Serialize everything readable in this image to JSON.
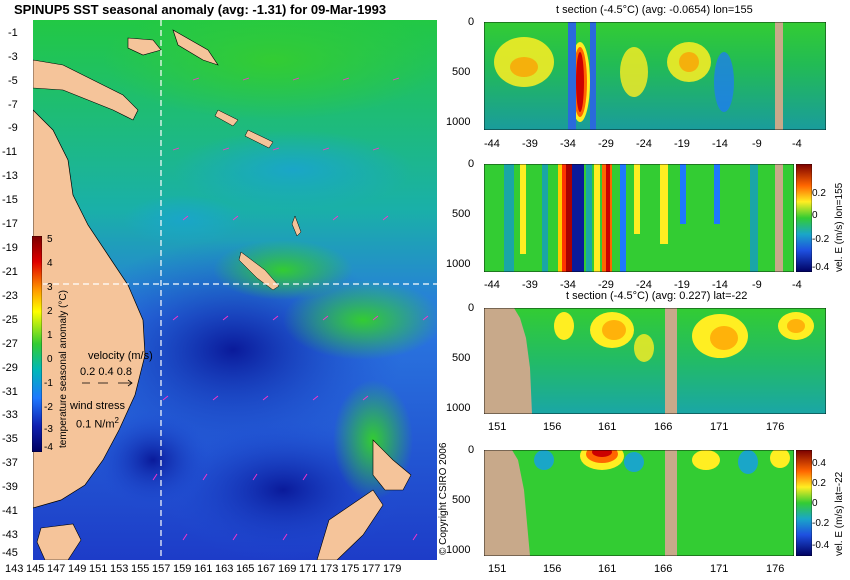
{
  "map": {
    "title": "SPINUP5 SST seasonal anomaly (avg: -1.31) for 09-Mar-1993",
    "lat_ticks": [
      "-1",
      "-3",
      "-5",
      "-7",
      "-9",
      "-11",
      "-13",
      "-15",
      "-17",
      "-19",
      "-21",
      "-23",
      "-25",
      "-27",
      "-29",
      "-31",
      "-33",
      "-35",
      "-37",
      "-39",
      "-41",
      "-43",
      "-45"
    ],
    "lon_ticks": [
      "143",
      "145",
      "147",
      "149",
      "151",
      "153",
      "155",
      "157",
      "159",
      "161",
      "163",
      "165",
      "167",
      "169",
      "171",
      "173",
      "175",
      "177",
      "179"
    ],
    "colorbar_label": "temperature seasonal anomaly (°C)",
    "colorbar_ticks": [
      "5",
      "4",
      "3",
      "2",
      "1",
      "0",
      "-1",
      "-2",
      "-3",
      "-4"
    ],
    "velocity_label": "velocity (m/s)",
    "velocity_scale": "0.2 0.4 0.8",
    "wind_label": "wind stress",
    "wind_scale": "0.1 N/m",
    "wind_scale_sup": "2",
    "section_lon": 155,
    "section_lat": -22
  },
  "copyright": "© Copyright CSIRO 2006",
  "colors": {
    "land": "#f5c49a",
    "land_section": "#c8a98a",
    "background": "#ffffff",
    "guide_line": "#ffffff",
    "vectors": "#ff33cc"
  },
  "chart_data": [
    {
      "type": "heatmap",
      "title": "SPINUP5 SST seasonal anomaly (avg: -1.31) for 09-Mar-1993",
      "xlabel": "",
      "ylabel": "",
      "xlim": [
        142,
        180
      ],
      "ylim": [
        -45,
        0
      ],
      "colorbar": {
        "label": "temperature seasonal anomaly (°C)",
        "range": [
          -4,
          5
        ]
      },
      "avg": -1.31
    },
    {
      "type": "heatmap",
      "title": "t section (-4.5°C) (avg: -0.0654) lon=155",
      "x_ticks": [
        "-44",
        "-39",
        "-34",
        "-29",
        "-24",
        "-19",
        "-14",
        "-9",
        "-4"
      ],
      "y_ticks": [
        "0",
        "500",
        "1000"
      ],
      "xlim": [
        -45,
        0
      ],
      "ylim": [
        1050,
        0
      ],
      "avg": -0.0654
    },
    {
      "type": "heatmap",
      "title": "",
      "x_ticks": [
        "-44",
        "-39",
        "-34",
        "-29",
        "-24",
        "-19",
        "-14",
        "-9",
        "-4"
      ],
      "y_ticks": [
        "0",
        "500",
        "1000"
      ],
      "colorbar": {
        "label": "vel. E (m/s) lon=155",
        "ticks": [
          "0.2",
          "0",
          "-0.2",
          "-0.4"
        ]
      }
    },
    {
      "type": "heatmap",
      "title": "t section (-4.5°C) (avg: 0.227) lat=-22",
      "x_ticks": [
        "151",
        "156",
        "161",
        "166",
        "171",
        "176"
      ],
      "y_ticks": [
        "0",
        "500",
        "1000"
      ],
      "xlim": [
        150,
        180
      ],
      "ylim": [
        1050,
        0
      ],
      "avg": 0.227
    },
    {
      "type": "heatmap",
      "title": "",
      "x_ticks": [
        "151",
        "156",
        "161",
        "166",
        "171",
        "176"
      ],
      "y_ticks": [
        "0",
        "500",
        "1000"
      ],
      "colorbar": {
        "label": "vel. E (m/s) lat=-22",
        "ticks": [
          "0.4",
          "0.2",
          "0",
          "-0.2",
          "-0.4"
        ]
      }
    }
  ]
}
